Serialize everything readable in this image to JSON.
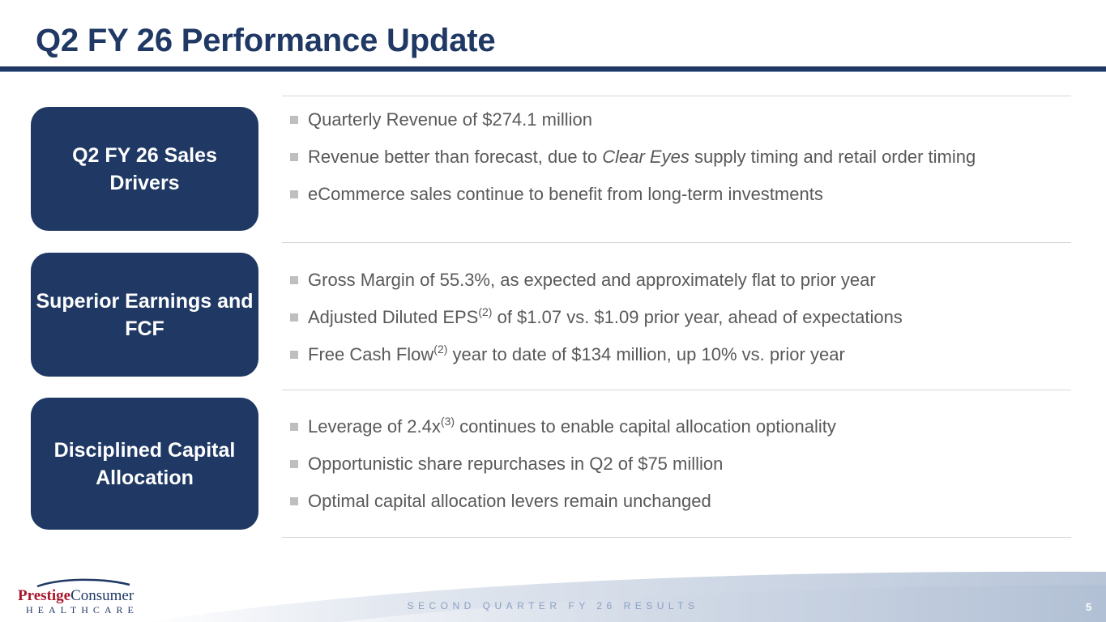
{
  "title": "Q2 FY 26 Performance Update",
  "colors": {
    "navy": "#1f3864",
    "bullet_text": "#595959",
    "logo_red": "#a8162b"
  },
  "sections": [
    {
      "label": "Q2 FY 26 Sales Drivers",
      "bullets": [
        {
          "pre": "Quarterly Revenue of $274.1 million"
        },
        {
          "pre": "Revenue better than forecast, due to ",
          "em": "Clear Eyes",
          "post": " supply timing and retail order timing"
        },
        {
          "pre": "eCommerce sales continue to benefit from long-term investments"
        }
      ]
    },
    {
      "label": "Superior Earnings and FCF",
      "bullets": [
        {
          "pre": "Gross Margin of 55.3%, as expected and approximately flat to prior year"
        },
        {
          "pre": "Adjusted Diluted EPS",
          "sup": "(2)",
          "post": " of $1.07 vs. $1.09 prior year, ahead of expectations"
        },
        {
          "pre": "Free Cash Flow",
          "sup": "(2)",
          "post": " year to date of $134 million, up 10% vs. prior year"
        }
      ]
    },
    {
      "label": "Disciplined Capital Allocation",
      "bullets": [
        {
          "pre": "Leverage of 2.4x",
          "sup": "(3)",
          "post": " continues to enable capital allocation optionality"
        },
        {
          "pre": "Opportunistic share repurchases in Q2 of $75 million"
        },
        {
          "pre": "Optimal capital allocation levers remain unchanged"
        }
      ]
    }
  ],
  "logo": {
    "word1": "Prestige",
    "word2": "Consumer",
    "line2": "HEALTHCARE"
  },
  "footer": "SECOND QUARTER FY 26 RESULTS",
  "page_number": "5"
}
